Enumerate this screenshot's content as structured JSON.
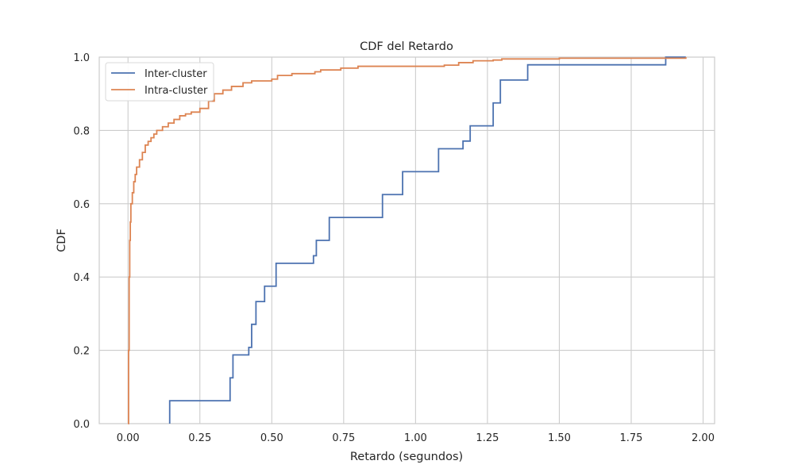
{
  "chart_data": {
    "type": "line",
    "title": "CDF del Retardo",
    "xlabel": "Retardo (segundos)",
    "ylabel": "CDF",
    "xlim": [
      -0.1,
      2.04
    ],
    "ylim": [
      0.0,
      1.0
    ],
    "x_ticks": [
      0.0,
      0.25,
      0.5,
      0.75,
      1.0,
      1.25,
      1.5,
      1.75,
      2.0
    ],
    "x_tick_labels": [
      "0.00",
      "0.25",
      "0.50",
      "0.75",
      "1.00",
      "1.25",
      "1.50",
      "1.75",
      "2.00"
    ],
    "y_ticks": [
      0.0,
      0.2,
      0.4,
      0.6,
      0.8,
      1.0
    ],
    "y_tick_labels": [
      "0.0",
      "0.2",
      "0.4",
      "0.6",
      "0.8",
      "1.0"
    ],
    "grid": true,
    "legend_position": "top-left",
    "series": [
      {
        "name": "Inter-cluster",
        "color": "#4c72b0",
        "step": "post",
        "x": [
          0.145,
          0.355,
          0.365,
          0.42,
          0.43,
          0.445,
          0.475,
          0.515,
          0.645,
          0.655,
          0.7,
          0.885,
          0.955,
          1.08,
          1.165,
          1.19,
          1.27,
          1.295,
          1.39,
          1.87,
          1.94
        ],
        "y": [
          0.0625,
          0.125,
          0.1875,
          0.208,
          0.271,
          0.333,
          0.375,
          0.4375,
          0.458,
          0.5,
          0.5625,
          0.625,
          0.6875,
          0.75,
          0.771,
          0.8125,
          0.875,
          0.9375,
          0.979,
          1.0,
          1.0
        ]
      },
      {
        "name": "Intra-cluster",
        "color": "#dd8452",
        "step": "post",
        "x": [
          0.0,
          0.002,
          0.004,
          0.006,
          0.008,
          0.01,
          0.015,
          0.02,
          0.025,
          0.03,
          0.04,
          0.05,
          0.06,
          0.07,
          0.08,
          0.09,
          0.1,
          0.12,
          0.14,
          0.16,
          0.18,
          0.2,
          0.22,
          0.25,
          0.28,
          0.3,
          0.33,
          0.36,
          0.4,
          0.43,
          0.5,
          0.52,
          0.57,
          0.65,
          0.67,
          0.74,
          0.8,
          0.9,
          1.1,
          1.15,
          1.2,
          1.27,
          1.3,
          1.5,
          1.94
        ],
        "y": [
          0.0,
          0.2,
          0.4,
          0.5,
          0.55,
          0.6,
          0.63,
          0.66,
          0.68,
          0.7,
          0.72,
          0.74,
          0.76,
          0.77,
          0.78,
          0.79,
          0.8,
          0.81,
          0.82,
          0.83,
          0.84,
          0.845,
          0.85,
          0.86,
          0.88,
          0.9,
          0.91,
          0.92,
          0.93,
          0.935,
          0.94,
          0.95,
          0.955,
          0.96,
          0.965,
          0.97,
          0.975,
          0.975,
          0.978,
          0.985,
          0.99,
          0.992,
          0.995,
          0.997,
          1.0
        ]
      }
    ]
  }
}
